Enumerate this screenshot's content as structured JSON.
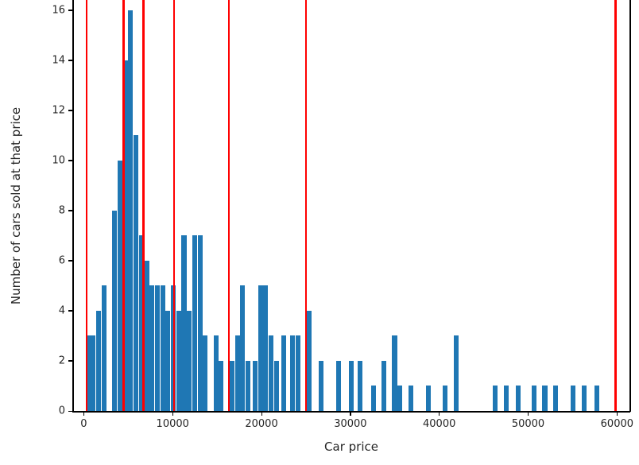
{
  "chart_data": {
    "type": "bar",
    "subtype": "histogram",
    "title": "",
    "xlabel": "Car price",
    "ylabel": "Number of cars sold at that price",
    "x_tick_labels": [
      "0",
      "10000",
      "20000",
      "30000",
      "40000",
      "50000",
      "60000"
    ],
    "x_tick_values": [
      0,
      10000,
      20000,
      30000,
      40000,
      50000,
      60000
    ],
    "y_tick_labels": [
      "0",
      "2",
      "4",
      "6",
      "8",
      "10",
      "12",
      "14",
      "16"
    ],
    "y_tick_values": [
      0,
      2,
      4,
      6,
      8,
      10,
      12,
      14,
      16
    ],
    "xlim": [
      -1200,
      61400
    ],
    "ylim": [
      0,
      16.41
    ],
    "grid": false,
    "legend": false,
    "bin_width": 600,
    "bar_color": "#1f77b4",
    "vline_color": "#ff0000",
    "vlines": [
      300,
      4500,
      6700,
      10150,
      16350,
      25000,
      59850
    ],
    "bars": [
      [
        200,
        3
      ],
      [
        800,
        3
      ],
      [
        1400,
        4
      ],
      [
        2000,
        5
      ],
      [
        3200,
        8
      ],
      [
        3800,
        10
      ],
      [
        4400,
        14
      ],
      [
        5000,
        16
      ],
      [
        5600,
        11
      ],
      [
        6200,
        7
      ],
      [
        6800,
        6
      ],
      [
        7400,
        5
      ],
      [
        8000,
        5
      ],
      [
        8600,
        5
      ],
      [
        9200,
        4
      ],
      [
        9800,
        5
      ],
      [
        10400,
        4
      ],
      [
        11000,
        7
      ],
      [
        11600,
        4
      ],
      [
        12200,
        7
      ],
      [
        12800,
        7
      ],
      [
        13400,
        3
      ],
      [
        14600,
        3
      ],
      [
        15200,
        2
      ],
      [
        16400,
        2
      ],
      [
        17000,
        3
      ],
      [
        17600,
        5
      ],
      [
        18200,
        2
      ],
      [
        19000,
        2
      ],
      [
        19600,
        5
      ],
      [
        20200,
        5
      ],
      [
        20800,
        3
      ],
      [
        21400,
        2
      ],
      [
        22200,
        3
      ],
      [
        23200,
        3
      ],
      [
        23800,
        3
      ],
      [
        25100,
        4
      ],
      [
        26400,
        2
      ],
      [
        28400,
        2
      ],
      [
        29800,
        2
      ],
      [
        30800,
        2
      ],
      [
        32300,
        1
      ],
      [
        33500,
        2
      ],
      [
        34700,
        3
      ],
      [
        35300,
        1
      ],
      [
        36500,
        1
      ],
      [
        38500,
        1
      ],
      [
        40400,
        1
      ],
      [
        41600,
        3
      ],
      [
        46000,
        1
      ],
      [
        47300,
        1
      ],
      [
        48600,
        1
      ],
      [
        50400,
        1
      ],
      [
        51600,
        1
      ],
      [
        52800,
        1
      ],
      [
        54800,
        1
      ],
      [
        56000,
        1
      ],
      [
        57500,
        1
      ]
    ]
  }
}
